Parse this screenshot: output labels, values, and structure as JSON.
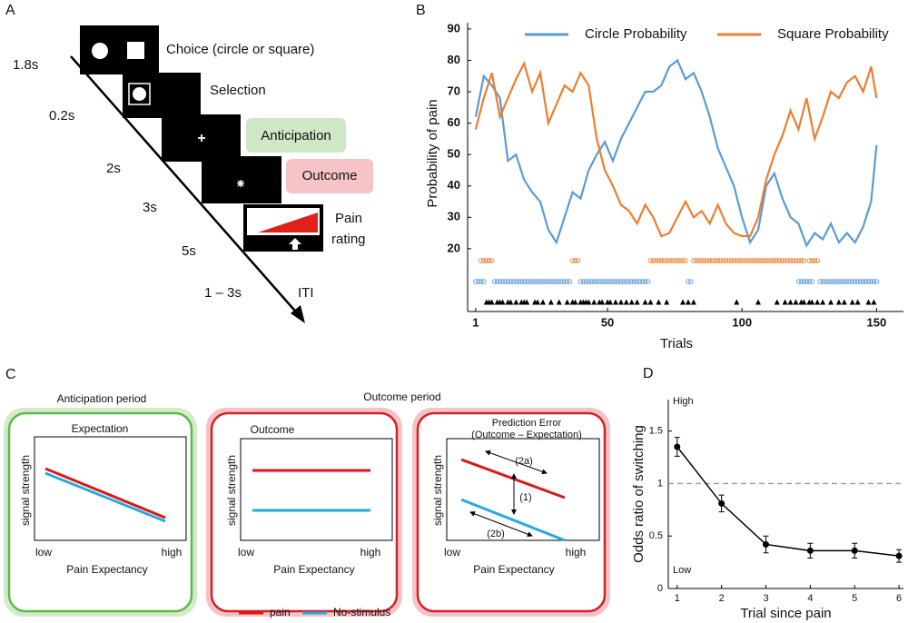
{
  "panel_labels": [
    "A",
    "B",
    "C",
    "D"
  ],
  "panel_a": {
    "steps": [
      {
        "duration": "1.8s",
        "label": "Choice (circle or square)"
      },
      {
        "duration": "0.2s",
        "label": "Selection"
      },
      {
        "duration": "2s",
        "label": "Anticipation"
      },
      {
        "duration": "3s",
        "label": "Outcome"
      },
      {
        "duration": "5s",
        "label": [
          "Pain",
          "rating"
        ]
      },
      {
        "duration": "1 – 3s",
        "label": "ITI"
      }
    ]
  },
  "panel_c": {
    "anticipation_heading": "Anticipation period",
    "outcome_heading": "Outcome period",
    "expectation_title": "Expectation",
    "outcome_title": "Outcome",
    "prediction_error_title": "Prediction Error",
    "prediction_error_subtitle": "(Outcome – Expectation)",
    "annotations": [
      "(2a)",
      "(1)",
      "(2b)"
    ],
    "ylabel": "signal strength",
    "xlabel": "Pain Expectancy",
    "xlow": "low",
    "xhigh": "high",
    "legend": [
      {
        "name": "pain",
        "color": "#d7191c"
      },
      {
        "name": "No-stimulus",
        "color": "#29a8e0"
      }
    ]
  },
  "chart_data": [
    {
      "type": "line",
      "xlabel": "Trials",
      "ylabel": "Probability of pain",
      "x": [
        1,
        4,
        7,
        10,
        13,
        16,
        19,
        22,
        25,
        28,
        31,
        34,
        37,
        40,
        43,
        46,
        49,
        52,
        55,
        58,
        61,
        64,
        67,
        70,
        73,
        76,
        79,
        82,
        85,
        88,
        91,
        94,
        97,
        100,
        103,
        106,
        109,
        112,
        115,
        118,
        121,
        124,
        127,
        130,
        133,
        136,
        139,
        142,
        145,
        148,
        150
      ],
      "series": [
        {
          "name": "Circle Probability",
          "color": "#5b9bd5",
          "values": [
            62,
            75,
            72,
            68,
            48,
            50,
            42,
            38,
            35,
            26,
            22,
            30,
            38,
            36,
            45,
            50,
            54,
            48,
            55,
            60,
            65,
            70,
            70,
            72,
            78,
            80,
            74,
            76,
            70,
            62,
            52,
            46,
            40,
            30,
            22,
            26,
            40,
            44,
            36,
            30,
            28,
            21,
            25,
            23,
            28,
            22,
            25,
            22,
            27,
            35,
            53
          ],
          "choice_runs": [
            [
              1,
              4
            ],
            [
              8,
              36
            ],
            [
              40,
              65
            ],
            [
              80,
              81
            ],
            [
              121,
              126
            ],
            [
              129,
              150
            ]
          ]
        },
        {
          "name": "Square Probability",
          "color": "#ed7d31",
          "values": [
            58,
            68,
            76,
            62,
            68,
            74,
            79,
            70,
            76,
            60,
            66,
            72,
            70,
            76,
            72,
            55,
            45,
            40,
            34,
            32,
            28,
            34,
            30,
            24,
            25,
            30,
            35,
            30,
            32,
            28,
            34,
            28,
            25,
            24,
            24,
            30,
            42,
            50,
            56,
            64,
            58,
            68,
            55,
            62,
            70,
            68,
            73,
            75,
            70,
            78,
            68
          ],
          "choice_runs": [
            [
              3,
              7
            ],
            [
              37,
              39
            ],
            [
              66,
              79
            ],
            [
              82,
              123
            ],
            [
              125,
              128
            ]
          ]
        }
      ],
      "pain_trials": [
        5,
        6,
        7,
        9,
        10,
        11,
        13,
        14,
        16,
        18,
        19,
        20,
        23,
        24,
        26,
        29,
        32,
        35,
        37,
        38,
        40,
        41,
        42,
        43,
        45,
        47,
        48,
        50,
        51,
        53,
        55,
        57,
        59,
        61,
        64,
        66,
        69,
        72,
        78,
        80,
        82,
        98,
        106,
        113,
        116,
        118,
        120,
        122,
        123,
        125,
        126,
        128,
        130,
        133,
        136,
        138,
        141,
        143,
        147,
        149
      ],
      "pain_color": "#000000",
      "xlim": [
        -2,
        160
      ],
      "ylim": [
        0,
        92
      ],
      "xticks": [
        1,
        50,
        100,
        150
      ],
      "yticks": [
        20,
        30,
        40,
        50,
        60,
        70,
        80,
        90
      ],
      "legend": "top"
    },
    {
      "type": "errorbar_line",
      "xlabel": "Trial since pain",
      "ylabel": "Odds ratio of switching",
      "x": [
        1,
        2,
        3,
        4,
        5,
        6
      ],
      "values": [
        1.35,
        0.81,
        0.42,
        0.36,
        0.36,
        0.31
      ],
      "errors": [
        0.09,
        0.08,
        0.08,
        0.07,
        0.07,
        0.06
      ],
      "color": "#000000",
      "refline": 1,
      "annotations": [
        "High",
        "Low"
      ],
      "xlim": [
        0.8,
        6.1
      ],
      "ylim": [
        0,
        1.8
      ],
      "xticks": [
        1,
        2,
        3,
        4,
        5,
        6
      ],
      "yticks": [
        0,
        0.5,
        1,
        1.5
      ]
    }
  ]
}
